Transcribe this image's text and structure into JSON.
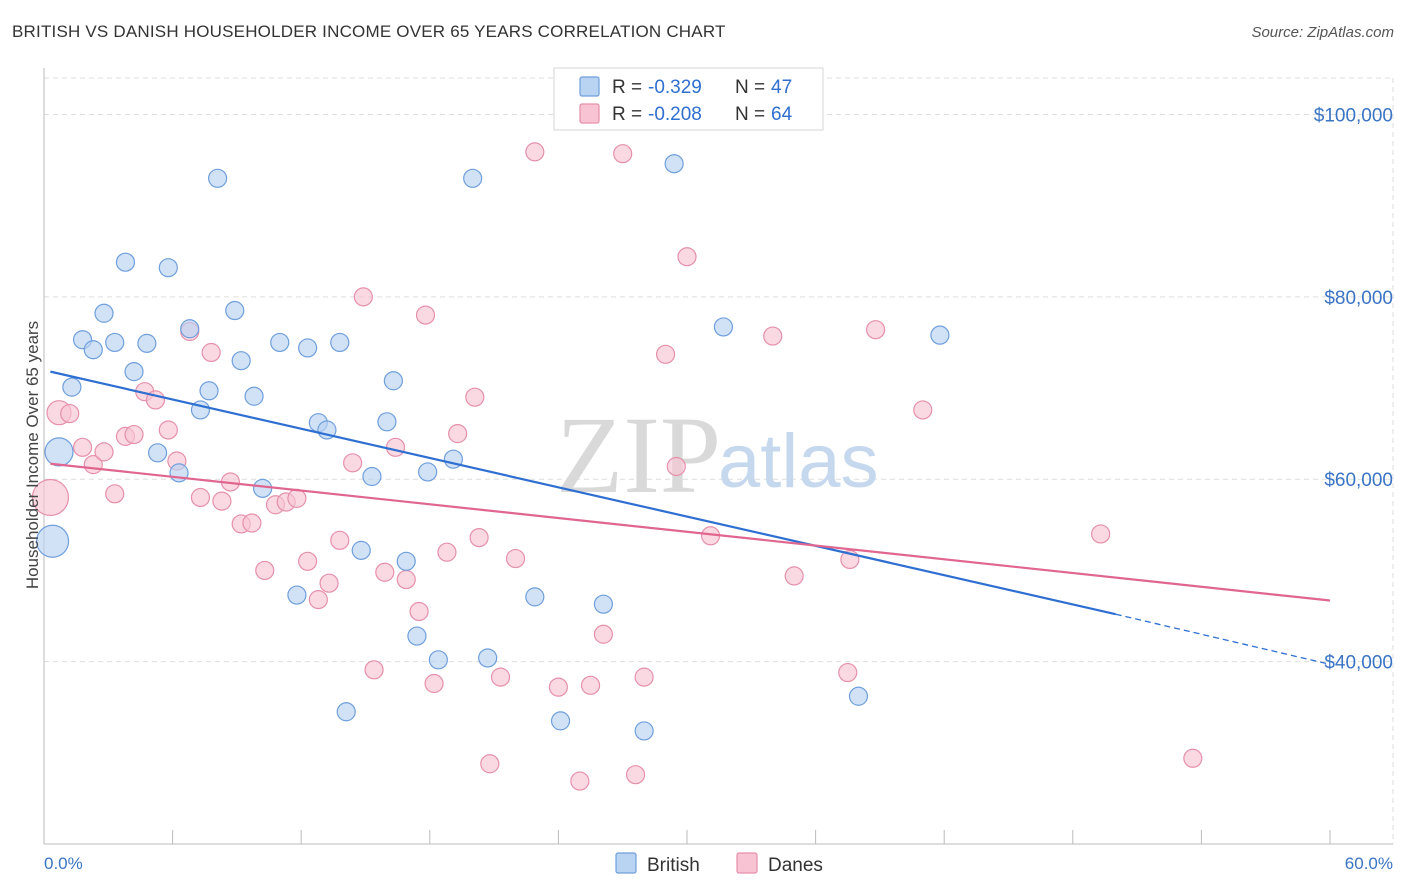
{
  "header": {
    "title": "BRITISH VS DANISH HOUSEHOLDER INCOME OVER 65 YEARS CORRELATION CHART",
    "source": "Source: ZipAtlas.com"
  },
  "watermark": {
    "zip": "ZIP",
    "atlas": "atlas"
  },
  "legend_top": {
    "british": {
      "r_label": "R =",
      "r_value": "-0.329",
      "n_label": "N =",
      "n_value": "47"
    },
    "danes": {
      "r_label": "R =",
      "r_value": "-0.208",
      "n_label": "N =",
      "n_value": "64"
    }
  },
  "legend_bottom": {
    "british": "British",
    "danes": "Danes"
  },
  "colors": {
    "british_fill": "#b9d3f3",
    "british_stroke": "#6f9fdc",
    "british_line": "#2e6fd1",
    "danes_fill": "#f8c4d3",
    "danes_stroke": "#e690ab",
    "danes_line": "#e06690",
    "grid": "#dddddd",
    "axis_text": "#3a74c4"
  },
  "chart_data": {
    "type": "scatter",
    "title": "BRITISH VS DANISH HOUSEHOLDER INCOME OVER 65 YEARS CORRELATION CHART",
    "xlabel": "",
    "ylabel": "Householder Income Over 65 years",
    "xlim": [
      0,
      60
    ],
    "ylim": [
      20000,
      104000
    ],
    "x_tick_labels": [
      "0.0%",
      "60.0%"
    ],
    "y_ticks": [
      40000,
      60000,
      80000,
      100000
    ],
    "y_tick_labels": [
      "$40,000",
      "$60,000",
      "$80,000",
      "$100,000"
    ],
    "grid": true,
    "series": [
      {
        "name": "British",
        "r": -0.329,
        "n": 47,
        "trend": {
          "x0": 0.3,
          "y0": 71800,
          "x1": 50.0,
          "y1": 45200,
          "dash_to_x": 60.0,
          "dash_to_y": 39700
        },
        "points": [
          [
            0.4,
            53200,
            16
          ],
          [
            0.7,
            63000,
            14
          ],
          [
            1.3,
            70100,
            9
          ],
          [
            1.8,
            75300,
            9
          ],
          [
            2.3,
            74200,
            9
          ],
          [
            2.8,
            78200,
            9
          ],
          [
            3.3,
            75000,
            9
          ],
          [
            3.8,
            83800,
            9
          ],
          [
            4.2,
            71800,
            9
          ],
          [
            4.8,
            74900,
            9
          ],
          [
            5.3,
            62900,
            9
          ],
          [
            5.8,
            83200,
            9
          ],
          [
            6.3,
            60700,
            9
          ],
          [
            6.8,
            76500,
            9
          ],
          [
            7.3,
            67600,
            9
          ],
          [
            7.7,
            69700,
            9
          ],
          [
            8.1,
            93000,
            9
          ],
          [
            8.9,
            78500,
            9
          ],
          [
            9.2,
            73000,
            9
          ],
          [
            9.8,
            69100,
            9
          ],
          [
            10.2,
            59000,
            9
          ],
          [
            11.0,
            75000,
            9
          ],
          [
            11.8,
            47300,
            9
          ],
          [
            12.3,
            74400,
            9
          ],
          [
            12.8,
            66200,
            9
          ],
          [
            13.2,
            65400,
            9
          ],
          [
            13.8,
            75000,
            9
          ],
          [
            14.1,
            34500,
            9
          ],
          [
            14.8,
            52200,
            9
          ],
          [
            15.3,
            60300,
            9
          ],
          [
            16.0,
            66300,
            9
          ],
          [
            16.3,
            70800,
            9
          ],
          [
            16.9,
            51000,
            9
          ],
          [
            17.4,
            42800,
            9
          ],
          [
            17.9,
            60800,
            9
          ],
          [
            18.4,
            40200,
            9
          ],
          [
            19.1,
            62200,
            9
          ],
          [
            20.0,
            93000,
            9
          ],
          [
            20.7,
            40400,
            9
          ],
          [
            22.9,
            47100,
            9
          ],
          [
            24.1,
            33500,
            9
          ],
          [
            26.1,
            46300,
            9
          ],
          [
            28.0,
            32400,
            9
          ],
          [
            29.4,
            94600,
            9
          ],
          [
            31.7,
            76700,
            9
          ],
          [
            38.0,
            36200,
            9
          ],
          [
            41.8,
            75800,
            9
          ]
        ]
      },
      {
        "name": "Danes",
        "r": -0.208,
        "n": 64,
        "trend": {
          "x0": 0.3,
          "y0": 61700,
          "x1": 60.0,
          "y1": 46700
        },
        "points": [
          [
            0.3,
            58000,
            18
          ],
          [
            0.7,
            67300,
            12
          ],
          [
            1.2,
            67200,
            9
          ],
          [
            1.8,
            63500,
            9
          ],
          [
            2.3,
            61600,
            9
          ],
          [
            2.8,
            63000,
            9
          ],
          [
            3.3,
            58400,
            9
          ],
          [
            3.8,
            64700,
            9
          ],
          [
            4.2,
            64900,
            9
          ],
          [
            4.7,
            69600,
            9
          ],
          [
            5.2,
            68700,
            9
          ],
          [
            5.8,
            65400,
            9
          ],
          [
            6.2,
            62000,
            9
          ],
          [
            6.8,
            76200,
            9
          ],
          [
            7.3,
            58000,
            9
          ],
          [
            7.8,
            73900,
            9
          ],
          [
            8.3,
            57600,
            9
          ],
          [
            8.7,
            59700,
            9
          ],
          [
            9.2,
            55100,
            9
          ],
          [
            9.7,
            55200,
            9
          ],
          [
            10.3,
            50000,
            9
          ],
          [
            10.8,
            57200,
            9
          ],
          [
            11.3,
            57500,
            9
          ],
          [
            11.8,
            57900,
            9
          ],
          [
            12.3,
            51000,
            9
          ],
          [
            12.8,
            46800,
            9
          ],
          [
            13.3,
            48600,
            9
          ],
          [
            13.8,
            53300,
            9
          ],
          [
            14.4,
            61800,
            9
          ],
          [
            14.9,
            80000,
            9
          ],
          [
            15.4,
            39100,
            9
          ],
          [
            15.9,
            49800,
            9
          ],
          [
            16.4,
            63500,
            9
          ],
          [
            16.9,
            49000,
            9
          ],
          [
            17.5,
            45500,
            9
          ],
          [
            17.8,
            78000,
            9
          ],
          [
            18.2,
            37600,
            9
          ],
          [
            18.8,
            52000,
            9
          ],
          [
            19.3,
            65000,
            9
          ],
          [
            20.1,
            69000,
            9
          ],
          [
            20.3,
            53600,
            9
          ],
          [
            20.8,
            28800,
            9
          ],
          [
            21.3,
            38300,
            9
          ],
          [
            22.0,
            51300,
            9
          ],
          [
            22.9,
            95900,
            9
          ],
          [
            24.0,
            37200,
            9
          ],
          [
            25.0,
            26900,
            9
          ],
          [
            25.5,
            37400,
            9
          ],
          [
            26.1,
            43000,
            9
          ],
          [
            27.0,
            95700,
            9
          ],
          [
            27.6,
            27600,
            9
          ],
          [
            28.0,
            38300,
            9
          ],
          [
            29.0,
            73700,
            9
          ],
          [
            29.5,
            61400,
            9
          ],
          [
            30.0,
            84400,
            9
          ],
          [
            31.1,
            53800,
            9
          ],
          [
            34.0,
            75700,
            9
          ],
          [
            35.0,
            49400,
            9
          ],
          [
            37.5,
            38800,
            9
          ],
          [
            37.6,
            51200,
            9
          ],
          [
            38.8,
            76400,
            9
          ],
          [
            41.0,
            67600,
            9
          ],
          [
            49.3,
            54000,
            9
          ],
          [
            53.6,
            29400,
            9
          ]
        ]
      }
    ]
  }
}
